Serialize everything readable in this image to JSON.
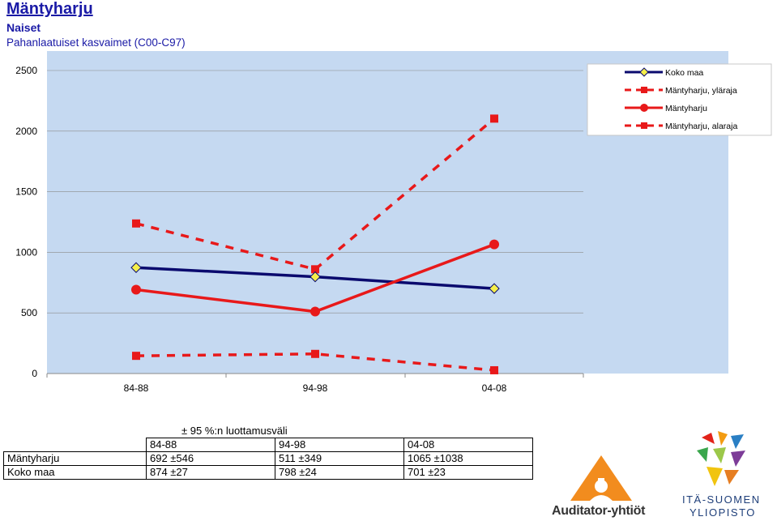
{
  "header": {
    "place": "Mäntyharju",
    "group": "Naiset",
    "diagnosis": "Pahanlaatuiset kasvaimet (C00-C97)"
  },
  "chart_data": {
    "type": "line",
    "categories": [
      "84-88",
      "94-98",
      "04-08"
    ],
    "ylim": [
      0,
      2500
    ],
    "yticks": [
      0,
      500,
      1000,
      1500,
      2000,
      2500
    ],
    "legend_position": "top-right",
    "series": [
      {
        "name": "Koko maa",
        "values": [
          874,
          798,
          701
        ],
        "color": "#0a0a6e",
        "style": "solid",
        "marker": "diamond"
      },
      {
        "name": "Mäntyharju, yläraja",
        "values": [
          1238,
          860,
          2103
        ],
        "color": "#e8191a",
        "style": "dashed",
        "marker": "square"
      },
      {
        "name": "Mäntyharju",
        "values": [
          692,
          511,
          1065
        ],
        "color": "#e8191a",
        "style": "solid",
        "marker": "circle"
      },
      {
        "name": "Mäntyharju, alaraja",
        "values": [
          146,
          162,
          27
        ],
        "color": "#e8191a",
        "style": "dashed",
        "marker": "square"
      }
    ],
    "plot_background": "#c5d9f1"
  },
  "ci_table": {
    "caption": "± 95 %:n luottamusväli",
    "headers": [
      "84-88",
      "94-98",
      "04-08"
    ],
    "rows": [
      {
        "label": "Mäntyharju",
        "values": [
          "692 ±546",
          "511 ±349",
          "1065 ±1038"
        ]
      },
      {
        "label": "Koko maa",
        "values": [
          "874 ±27",
          "798 ±24",
          "701 ±23"
        ]
      }
    ]
  },
  "logos": {
    "auditor": "Auditator-yhtiöt",
    "uef_line1": "ITÄ-SUOMEN",
    "uef_line2": "YLIOPISTO"
  }
}
